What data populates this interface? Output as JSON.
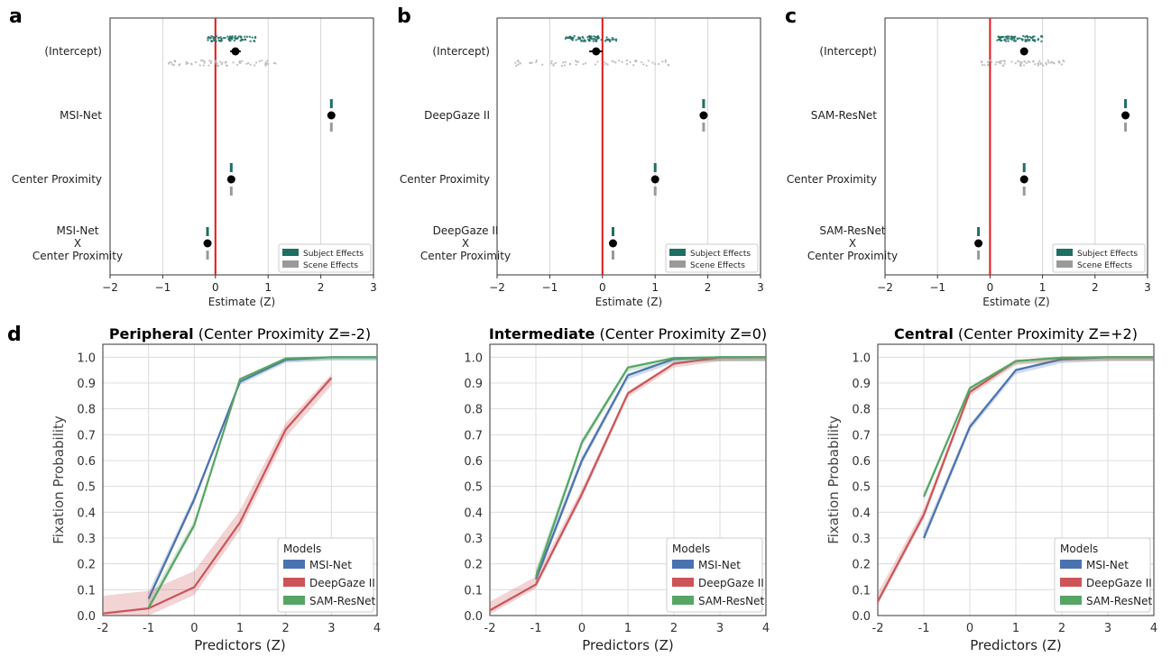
{
  "panel_letters": [
    "a",
    "b",
    "c",
    "d"
  ],
  "legend_top": {
    "subject": "Subject Effects",
    "scene": "Scene Effects"
  },
  "legend_bottom": {
    "title": "Models"
  },
  "colors": {
    "subject": "#1f6e64",
    "scene": "#9a9a9a",
    "zero_line": "#e0191b",
    "point": "#000000",
    "MSI-Net": "#4a72b0",
    "DeepGaze II": "#cc5458",
    "SAM-ResNet": "#56a565"
  },
  "chart_data": [
    {
      "type": "scatter",
      "panel": "a",
      "xlabel": "Estimate (Z)",
      "xlim": [
        -2,
        3
      ],
      "x_ticks": [
        "−2",
        "−1",
        "0",
        "1",
        "2",
        "3"
      ],
      "grid": "vertical",
      "legend": "bottom-right",
      "rows": [
        {
          "label": [
            "(Intercept)"
          ],
          "estimate": 0.38,
          "ci": [
            0.28,
            0.48
          ],
          "subject_range": [
            -0.15,
            0.8
          ],
          "scene_range": [
            -0.95,
            1.2
          ]
        },
        {
          "label": [
            "MSI-Net"
          ],
          "estimate": 2.2,
          "ci": [
            2.18,
            2.22
          ]
        },
        {
          "label": [
            "Center Proximity"
          ],
          "estimate": 0.3,
          "ci": [
            0.28,
            0.32
          ]
        },
        {
          "label": [
            "MSI-Net",
            "X",
            "Center Proximity"
          ],
          "estimate": -0.15,
          "ci": [
            -0.17,
            -0.13
          ]
        }
      ]
    },
    {
      "type": "scatter",
      "panel": "b",
      "xlabel": "Estimate (Z)",
      "xlim": [
        -2,
        3
      ],
      "x_ticks": [
        "−2",
        "−1",
        "0",
        "1",
        "2",
        "3"
      ],
      "grid": "vertical",
      "legend": "bottom-right",
      "rows": [
        {
          "label": [
            "(Intercept)"
          ],
          "estimate": -0.12,
          "ci": [
            -0.25,
            0.0
          ],
          "subject_range": [
            -0.7,
            0.3
          ],
          "scene_range": [
            -1.65,
            1.35
          ]
        },
        {
          "label": [
            "DeepGaze II"
          ],
          "estimate": 1.92,
          "ci": [
            1.9,
            1.94
          ]
        },
        {
          "label": [
            "Center Proximity"
          ],
          "estimate": 1.0,
          "ci": [
            0.98,
            1.02
          ]
        },
        {
          "label": [
            "DeepGaze II",
            "X",
            "Center Proximity"
          ],
          "estimate": 0.2,
          "ci": [
            0.18,
            0.22
          ]
        }
      ]
    },
    {
      "type": "scatter",
      "panel": "c",
      "xlabel": "Estimate (Z)",
      "xlim": [
        -2,
        3
      ],
      "x_ticks": [
        "−2",
        "−1",
        "0",
        "1",
        "2",
        "3"
      ],
      "grid": "vertical",
      "legend": "bottom-right",
      "rows": [
        {
          "label": [
            "(Intercept)"
          ],
          "estimate": 0.65,
          "ci": [
            0.58,
            0.72
          ],
          "subject_range": [
            0.1,
            1.0
          ],
          "scene_range": [
            -0.2,
            1.45
          ]
        },
        {
          "label": [
            "SAM-ResNet"
          ],
          "estimate": 2.58,
          "ci": [
            2.56,
            2.6
          ]
        },
        {
          "label": [
            "Center Proximity"
          ],
          "estimate": 0.65,
          "ci": [
            0.63,
            0.67
          ]
        },
        {
          "label": [
            "SAM-ResNet",
            "X",
            "Center Proximity"
          ],
          "estimate": -0.22,
          "ci": [
            -0.24,
            -0.2
          ]
        }
      ]
    },
    {
      "type": "line",
      "panel": "d",
      "title_bold": "Peripheral",
      "title_rest": " (Center Proximity Z=-2)",
      "xlabel": "Predictors (Z)",
      "ylabel": "Fixation Probability",
      "xlim": [
        -2,
        4
      ],
      "ylim": [
        0,
        1.05
      ],
      "x_ticks": [
        "-2",
        "-1",
        "0",
        "1",
        "2",
        "3",
        "4"
      ],
      "y_ticks": [
        "0.0",
        "0.1",
        "0.2",
        "0.3",
        "0.4",
        "0.5",
        "0.6",
        "0.7",
        "0.8",
        "0.9",
        "1.0"
      ],
      "grid": true,
      "legend": "bottom-right",
      "series": [
        {
          "name": "MSI-Net",
          "x": [
            -1,
            0,
            1,
            2,
            3,
            4
          ],
          "y": [
            0.065,
            0.45,
            0.905,
            0.99,
            1.0,
            1.0
          ],
          "band": 0.012
        },
        {
          "name": "DeepGaze II",
          "x": [
            -2,
            -1,
            0,
            1,
            2,
            3
          ],
          "y": [
            0.008,
            0.028,
            0.11,
            0.36,
            0.72,
            0.92
          ],
          "band": 0.03
        },
        {
          "name": "SAM-ResNet",
          "x": [
            -1,
            0,
            1,
            2,
            3,
            4
          ],
          "y": [
            0.03,
            0.35,
            0.915,
            0.995,
            1.0,
            1.0
          ],
          "band": 0.012
        }
      ]
    },
    {
      "type": "line",
      "panel": "d",
      "title_bold": "Intermediate",
      "title_rest": " (Center Proximity Z=0)",
      "xlabel": "Predictors (Z)",
      "ylabel": "",
      "xlim": [
        -2,
        4
      ],
      "ylim": [
        0,
        1.05
      ],
      "x_ticks": [
        "-2",
        "-1",
        "0",
        "1",
        "2",
        "3",
        "4"
      ],
      "y_ticks": [
        "0.0",
        "0.1",
        "0.2",
        "0.3",
        "0.4",
        "0.5",
        "0.6",
        "0.7",
        "0.8",
        "0.9",
        "1.0"
      ],
      "grid": true,
      "legend": "bottom-right",
      "series": [
        {
          "name": "MSI-Net",
          "x": [
            -1,
            0,
            1,
            2,
            3,
            4
          ],
          "y": [
            0.14,
            0.6,
            0.93,
            0.993,
            1.0,
            1.0
          ],
          "band": 0.015
        },
        {
          "name": "DeepGaze II",
          "x": [
            -2,
            -1,
            0,
            1,
            2,
            3,
            4
          ],
          "y": [
            0.02,
            0.12,
            0.47,
            0.86,
            0.975,
            0.999,
            1.0
          ],
          "band": 0.015
        },
        {
          "name": "SAM-ResNet",
          "x": [
            -1,
            0,
            1,
            2,
            3,
            4
          ],
          "y": [
            0.15,
            0.67,
            0.96,
            0.997,
            1.0,
            1.0
          ],
          "band": 0.015
        }
      ]
    },
    {
      "type": "line",
      "panel": "d",
      "title_bold": "Central",
      "title_rest": " (Center Proximity Z=+2)",
      "xlabel": "Predictors (Z)",
      "ylabel": "Fixation Probability",
      "xlim": [
        -2,
        4
      ],
      "ylim": [
        0,
        1.05
      ],
      "x_ticks": [
        "-2",
        "-1",
        "0",
        "1",
        "2",
        "3",
        "4"
      ],
      "y_ticks": [
        "0.0",
        "0.1",
        "0.2",
        "0.3",
        "0.4",
        "0.5",
        "0.6",
        "0.7",
        "0.8",
        "0.9",
        "1.0"
      ],
      "grid": true,
      "legend": "bottom-right",
      "series": [
        {
          "name": "MSI-Net",
          "x": [
            -1,
            0,
            1,
            2,
            3,
            4
          ],
          "y": [
            0.3,
            0.73,
            0.95,
            0.992,
            1.0,
            1.0
          ],
          "band": 0.015
        },
        {
          "name": "DeepGaze II",
          "x": [
            -2,
            -1,
            0,
            1,
            2,
            3,
            4
          ],
          "y": [
            0.055,
            0.39,
            0.865,
            0.985,
            0.998,
            1.0,
            1.0
          ],
          "band": 0.015
        },
        {
          "name": "SAM-ResNet",
          "x": [
            -1,
            0,
            1,
            2,
            3,
            4
          ],
          "y": [
            0.46,
            0.88,
            0.985,
            0.998,
            1.0,
            1.0
          ],
          "band": 0.012
        }
      ]
    }
  ]
}
